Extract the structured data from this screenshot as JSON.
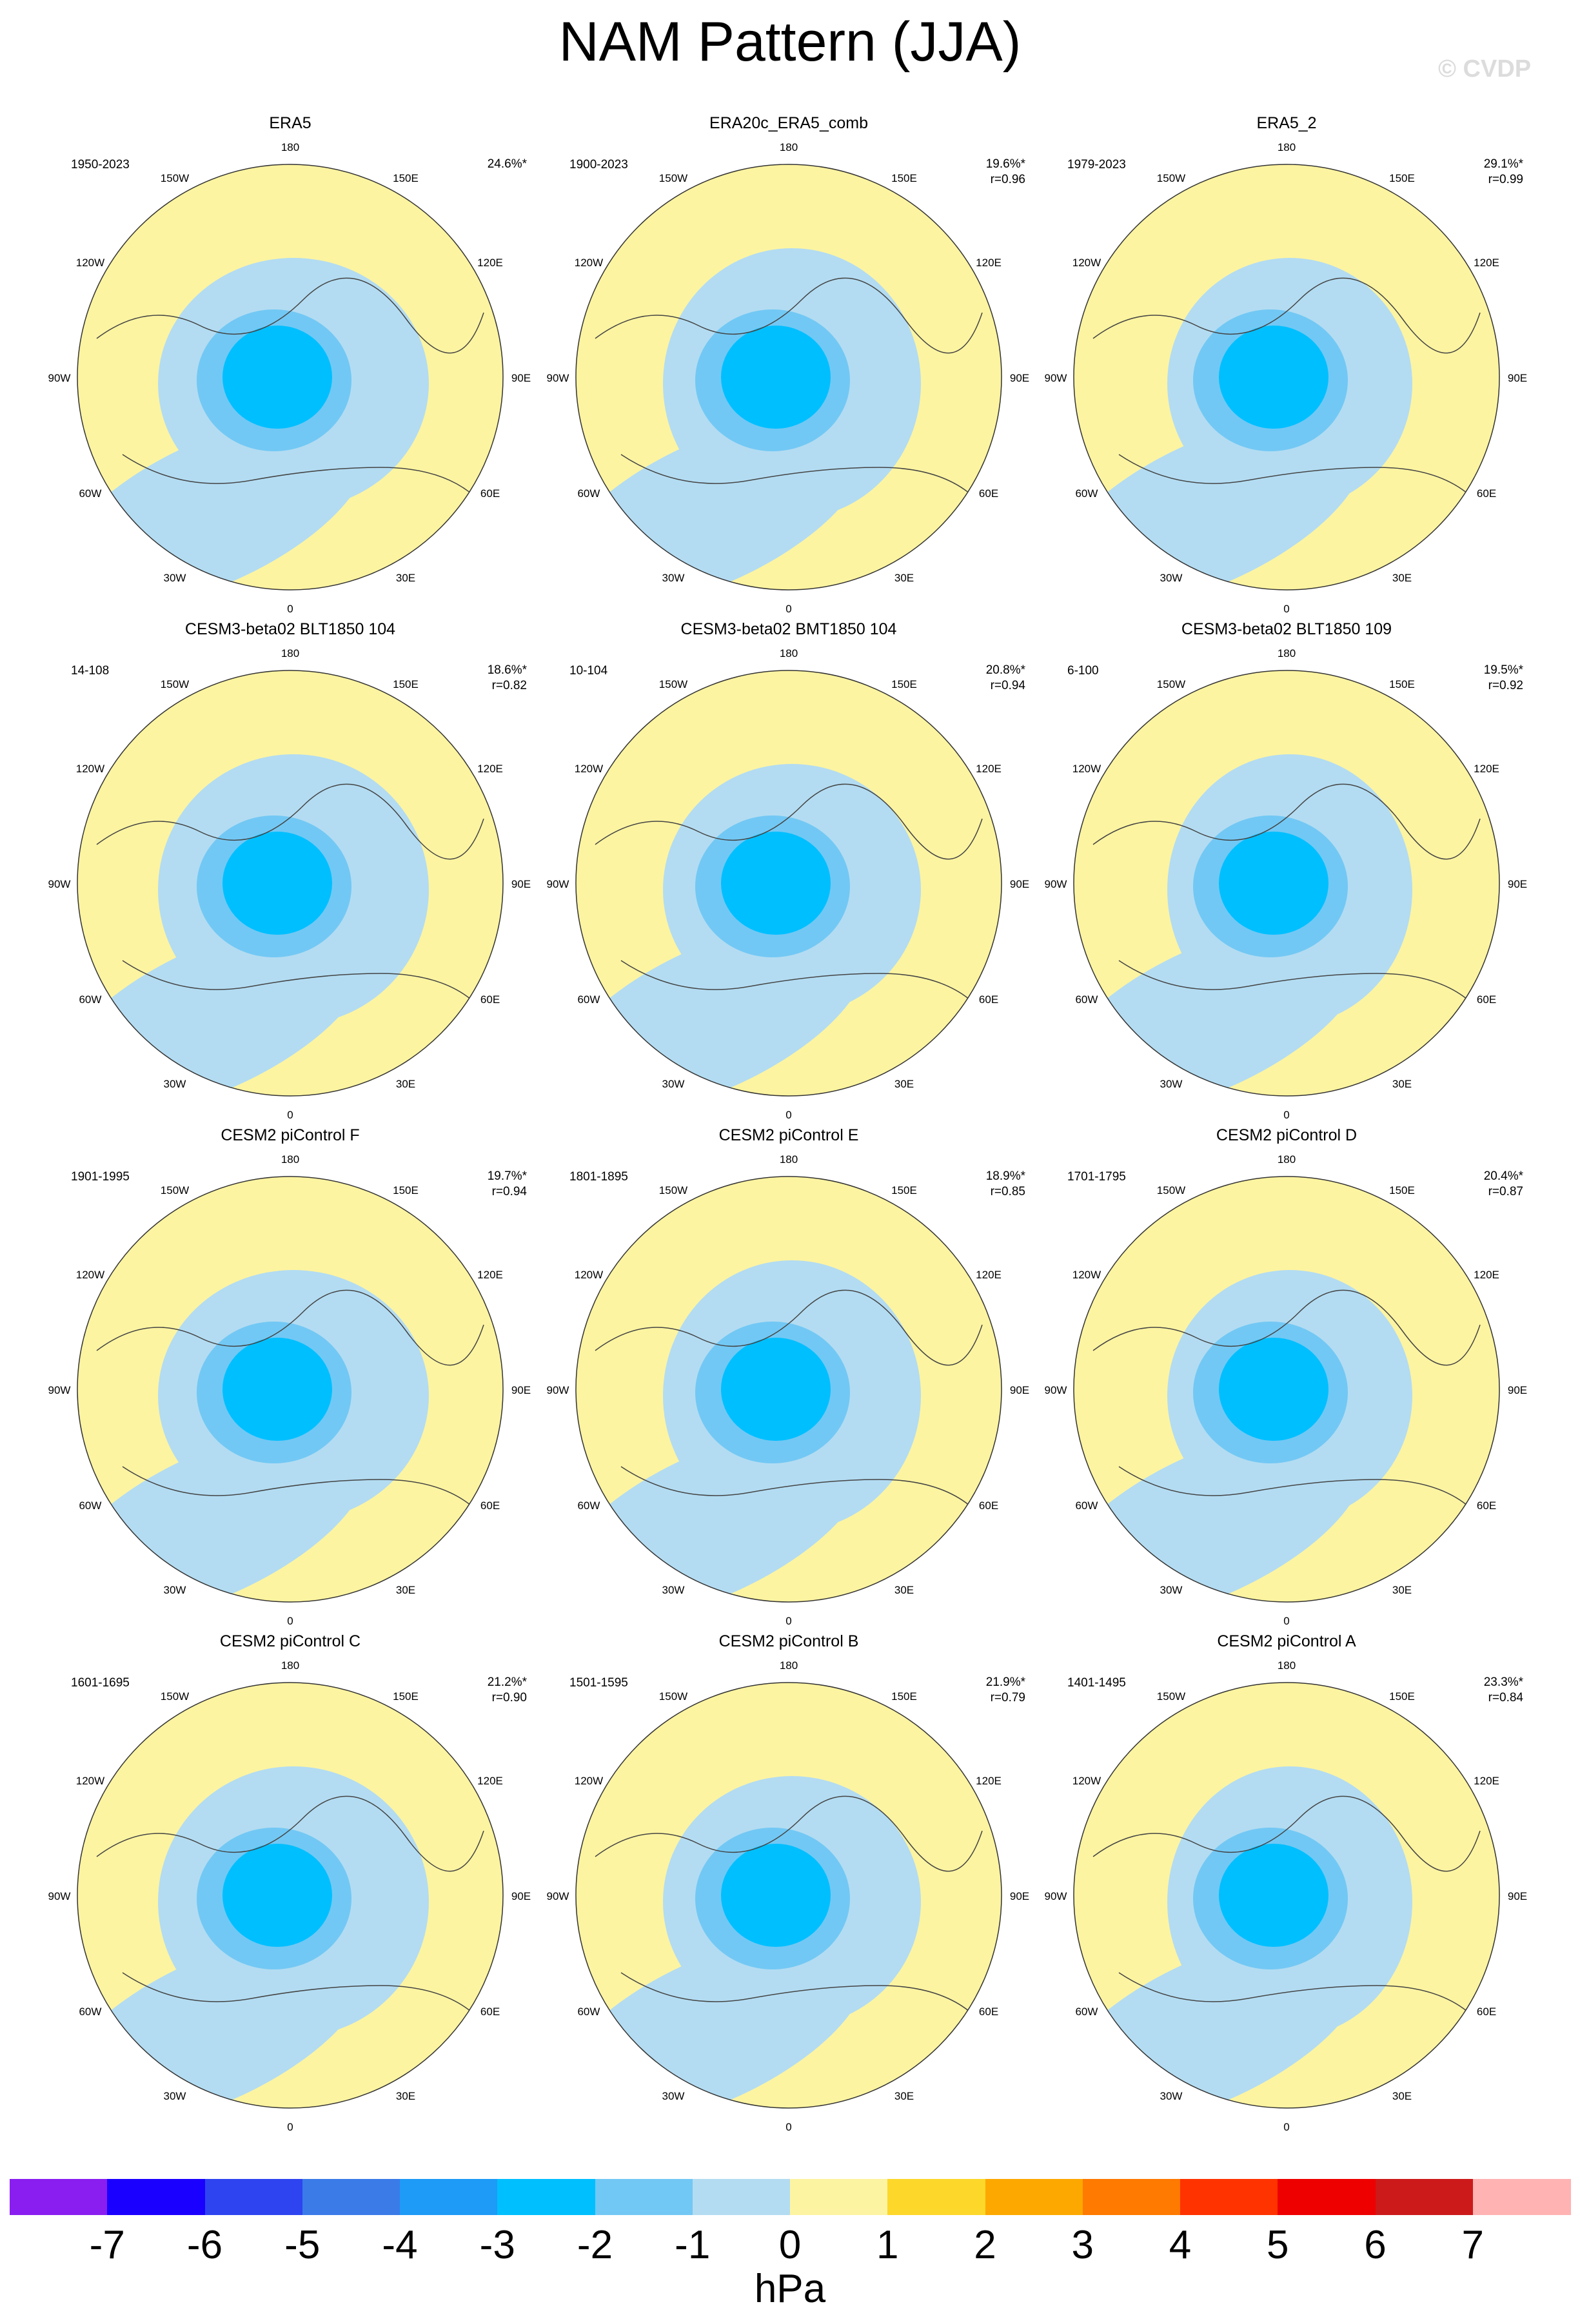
{
  "title": "NAM Pattern (JJA)",
  "watermark": "© CVDP",
  "chart_data": {
    "type": "heatmap",
    "projection": "north polar stereographic",
    "lon_labels": [
      "180",
      "150E",
      "120E",
      "90E",
      "60E",
      "30E",
      "0",
      "30W",
      "60W",
      "90W",
      "120W",
      "150W"
    ],
    "colorbar": {
      "unit": "hPa",
      "ticks": [
        "-7",
        "-6",
        "-5",
        "-4",
        "-3",
        "-2",
        "-1",
        "0",
        "1",
        "2",
        "3",
        "4",
        "5",
        "6",
        "7"
      ],
      "colors": [
        "#8a1ef0",
        "#1a00ff",
        "#2e44f0",
        "#3b7be8",
        "#1e9af7",
        "#00bfff",
        "#72c8f4",
        "#b3dcf2",
        "#fdf4a1",
        "#fdd72a",
        "#fda800",
        "#ff7a00",
        "#ff3300",
        "#ee0000",
        "#cc1a1a",
        "#ffb3b3"
      ]
    },
    "panels": [
      {
        "name": "ERA5",
        "period": "1950-2023",
        "pct": "24.6%*",
        "r": ""
      },
      {
        "name": "ERA20c_ERA5_comb",
        "period": "1900-2023",
        "pct": "19.6%*",
        "r": "r=0.96"
      },
      {
        "name": "ERA5_2",
        "period": "1979-2023",
        "pct": "29.1%*",
        "r": "r=0.99"
      },
      {
        "name": "CESM3-beta02 BLT1850 104",
        "period": "14-108",
        "pct": "18.6%*",
        "r": "r=0.82"
      },
      {
        "name": "CESM3-beta02 BMT1850 104",
        "period": "10-104",
        "pct": "20.8%*",
        "r": "r=0.94"
      },
      {
        "name": "CESM3-beta02 BLT1850 109",
        "period": "6-100",
        "pct": "19.5%*",
        "r": "r=0.92"
      },
      {
        "name": "CESM2 piControl F",
        "period": "1901-1995",
        "pct": "19.7%*",
        "r": "r=0.94"
      },
      {
        "name": "CESM2 piControl E",
        "period": "1801-1895",
        "pct": "18.9%*",
        "r": "r=0.85"
      },
      {
        "name": "CESM2 piControl D",
        "period": "1701-1795",
        "pct": "20.4%*",
        "r": "r=0.87"
      },
      {
        "name": "CESM2 piControl C",
        "period": "1601-1695",
        "pct": "21.2%*",
        "r": "r=0.90"
      },
      {
        "name": "CESM2 piControl B",
        "period": "1501-1595",
        "pct": "21.9%*",
        "r": "r=0.79"
      },
      {
        "name": "CESM2 piControl A",
        "period": "1401-1495",
        "pct": "23.3%*",
        "r": "r=0.84"
      }
    ]
  }
}
